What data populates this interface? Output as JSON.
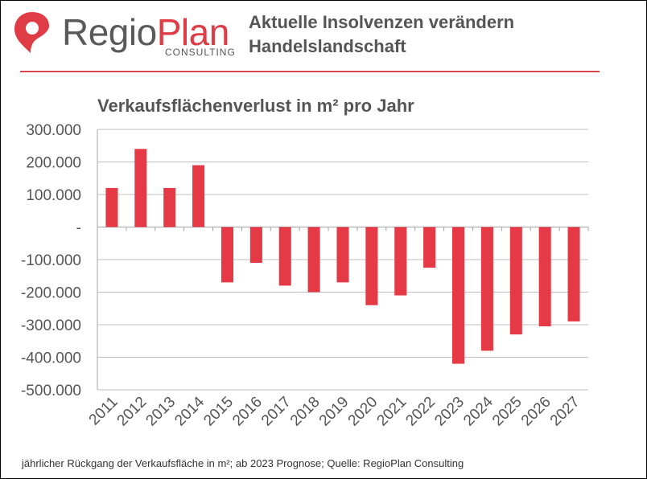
{
  "header": {
    "logo_regio": "Regio",
    "logo_plan": "Plan",
    "logo_consulting": "CONSULTING",
    "title_line1": "Aktuelle Insolvenzen verändern",
    "title_line2": "Handelslandschaft"
  },
  "footnote": "jährlicher Rückgang der Verkaufsfläche in m²; ab 2023 Prognose; Quelle: RegioPlan Consulting",
  "colors": {
    "bar": "#e63946",
    "accent_line": "#d9464e",
    "grid": "#bfbfbf",
    "text": "#555555"
  },
  "chart_data": {
    "type": "bar",
    "title": "Verkaufsflächenverlust in m² pro Jahr",
    "xlabel": "",
    "ylabel": "",
    "categories": [
      "2011",
      "2012",
      "2013",
      "2014",
      "2015",
      "2016",
      "2017",
      "2018",
      "2019",
      "2020",
      "2021",
      "2022",
      "2023",
      "2024",
      "2025",
      "2026",
      "2027"
    ],
    "values": [
      120000,
      240000,
      120000,
      190000,
      -170000,
      -110000,
      -180000,
      -200000,
      -170000,
      -240000,
      -210000,
      -125000,
      -420000,
      -380000,
      -330000,
      -305000,
      -290000
    ],
    "ylim": [
      -500000,
      300000
    ],
    "yticks": [
      300000,
      200000,
      100000,
      0,
      -100000,
      -200000,
      -300000,
      -400000,
      -500000
    ],
    "ytick_labels": [
      "300.000",
      "200.000",
      "100.000",
      "-",
      "-100.000",
      "-200.000",
      "-300.000",
      "-400.000",
      "-500.000"
    ],
    "grid": true,
    "legend": "none"
  }
}
